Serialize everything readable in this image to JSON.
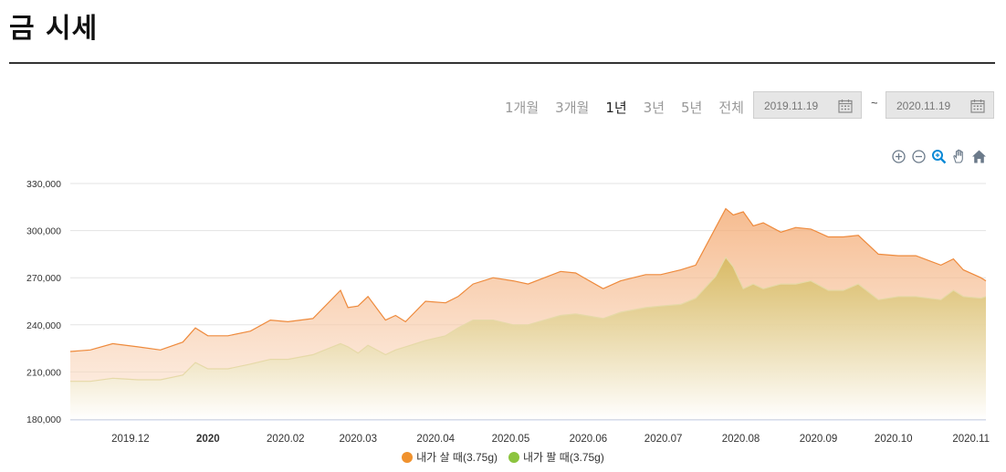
{
  "page": {
    "title": "금 시세"
  },
  "range_buttons": [
    {
      "label": "1개월",
      "active": false
    },
    {
      "label": "3개월",
      "active": false
    },
    {
      "label": "1년",
      "active": true
    },
    {
      "label": "3년",
      "active": false
    },
    {
      "label": "5년",
      "active": false
    },
    {
      "label": "전체",
      "active": false
    }
  ],
  "date_range": {
    "start": "2019.11.19",
    "separator": "~",
    "end": "2020.11.19"
  },
  "toolbar": [
    "zoom-in-icon",
    "zoom-out-icon",
    "selection-zoom-icon",
    "pan-icon",
    "reset-home-icon"
  ],
  "colors": {
    "buy": "#f0922e",
    "sell": "#8cc43f",
    "sell_fill": "#d8b85a"
  },
  "chart_data": {
    "type": "area",
    "ylim": [
      180000,
      330000
    ],
    "yticks": [
      180000,
      210000,
      240000,
      270000,
      300000,
      330000
    ],
    "ytick_labels": [
      "180,000",
      "210,000",
      "240,000",
      "270,000",
      "300,000",
      "330,000"
    ],
    "xticks": [
      {
        "label": "2019.12",
        "x": "2019-12-01",
        "bold": false
      },
      {
        "label": "2020",
        "x": "2020-01-01",
        "bold": true
      },
      {
        "label": "2020.02",
        "x": "2020-02-01",
        "bold": false
      },
      {
        "label": "2020.03",
        "x": "2020-03-01",
        "bold": false
      },
      {
        "label": "2020.04",
        "x": "2020-04-01",
        "bold": false
      },
      {
        "label": "2020.05",
        "x": "2020-05-01",
        "bold": false
      },
      {
        "label": "2020.06",
        "x": "2020-06-01",
        "bold": false
      },
      {
        "label": "2020.07",
        "x": "2020-07-01",
        "bold": false
      },
      {
        "label": "2020.08",
        "x": "2020-08-01",
        "bold": false
      },
      {
        "label": "2020.09",
        "x": "2020-09-01",
        "bold": false
      },
      {
        "label": "2020.10",
        "x": "2020-10-01",
        "bold": false
      },
      {
        "label": "2020.11",
        "x": "2020-11-01",
        "bold": false
      }
    ],
    "x": [
      "2019-11-19",
      "2019-11-27",
      "2019-12-06",
      "2019-12-16",
      "2019-12-25",
      "2020-01-03",
      "2020-01-08",
      "2020-01-13",
      "2020-01-21",
      "2020-01-30",
      "2020-02-07",
      "2020-02-14",
      "2020-02-24",
      "2020-03-06",
      "2020-03-09",
      "2020-03-13",
      "2020-03-17",
      "2020-03-24",
      "2020-03-28",
      "2020-04-01",
      "2020-04-09",
      "2020-04-17",
      "2020-04-22",
      "2020-04-28",
      "2020-05-06",
      "2020-05-14",
      "2020-05-20",
      "2020-06-02",
      "2020-06-08",
      "2020-06-19",
      "2020-06-26",
      "2020-07-06",
      "2020-07-12",
      "2020-07-20",
      "2020-07-26",
      "2020-08-03",
      "2020-08-07",
      "2020-08-10",
      "2020-08-14",
      "2020-08-18",
      "2020-08-22",
      "2020-08-29",
      "2020-09-04",
      "2020-09-10",
      "2020-09-17",
      "2020-09-23",
      "2020-09-29",
      "2020-10-07",
      "2020-10-15",
      "2020-10-22",
      "2020-11-01",
      "2020-11-06",
      "2020-11-10",
      "2020-11-17",
      "2020-11-19"
    ],
    "series": [
      {
        "name": "내가 살 때(3.75g)",
        "color": "#f0922e",
        "values": [
          223000,
          224000,
          228000,
          226000,
          224000,
          229000,
          238000,
          233000,
          233000,
          236000,
          243000,
          242000,
          244000,
          262000,
          251000,
          252000,
          258000,
          243000,
          246000,
          242000,
          255000,
          254000,
          258000,
          266000,
          270000,
          268000,
          266000,
          274000,
          273000,
          263000,
          268000,
          272000,
          272000,
          275000,
          278000,
          302000,
          314000,
          310000,
          312000,
          303000,
          305000,
          299000,
          302000,
          301000,
          296000,
          296000,
          297000,
          285000,
          284000,
          284000,
          278000,
          282000,
          275000,
          270000,
          268000
        ]
      },
      {
        "name": "내가 팔 때(3.75g)",
        "color": "#8cc43f",
        "values": [
          204000,
          204000,
          206000,
          205000,
          205000,
          208000,
          216000,
          212000,
          212000,
          215000,
          218000,
          218000,
          221000,
          228000,
          226000,
          222000,
          227000,
          221000,
          224000,
          226000,
          230000,
          233000,
          238000,
          243000,
          243000,
          240000,
          240000,
          246000,
          247000,
          244000,
          248000,
          251000,
          252000,
          253000,
          257000,
          271000,
          283000,
          277000,
          263000,
          266000,
          263000,
          266000,
          266000,
          268000,
          262000,
          262000,
          266000,
          256000,
          258000,
          258000,
          256000,
          262000,
          258000,
          257000,
          258000
        ]
      }
    ]
  }
}
